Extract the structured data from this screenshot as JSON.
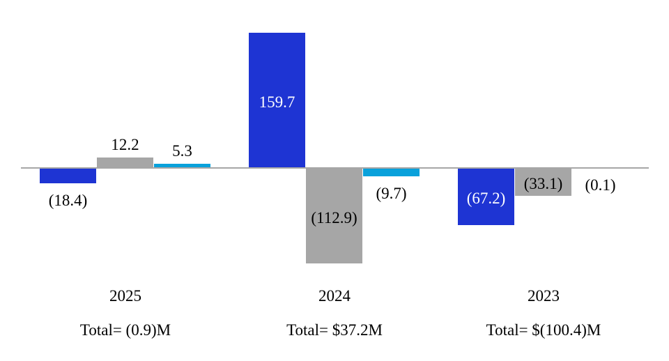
{
  "chart_data": {
    "type": "bar",
    "title": "",
    "categories": [
      "2025",
      "2024",
      "2023"
    ],
    "series": [
      {
        "name": "blue-series",
        "color": "#1E34D3",
        "inside_label_color": "#FFFFFF",
        "values": [
          -18.4,
          159.7,
          -67.2
        ],
        "labels": [
          "(18.4)",
          "159.7",
          "(67.2)"
        ]
      },
      {
        "name": "gray-series",
        "color": "#A6A6A6",
        "inside_label_color": "#000000",
        "values": [
          12.2,
          -112.9,
          -33.1
        ],
        "labels": [
          "12.2",
          "(112.9)",
          "(33.1)"
        ]
      },
      {
        "name": "cyan-series",
        "color": "#09A1DB",
        "inside_label_color": "#000000",
        "values": [
          5.3,
          -9.7,
          -0.1
        ],
        "labels": [
          "5.3",
          "(9.7)",
          "(0.1)"
        ]
      }
    ],
    "totals": [
      {
        "category": "2025",
        "label": "Total= (0.9)M",
        "value": -0.9
      },
      {
        "category": "2024",
        "label": "Total= $37.2M",
        "value": 37.2
      },
      {
        "category": "2023",
        "label": "Total= $(100.4)M",
        "value": -100.4
      }
    ],
    "axis": {
      "zero_line_color": "#A6A6A6",
      "ylim": [
        -115,
        165
      ],
      "grid": false,
      "legend": "none"
    },
    "label_text_color": "#000000"
  }
}
